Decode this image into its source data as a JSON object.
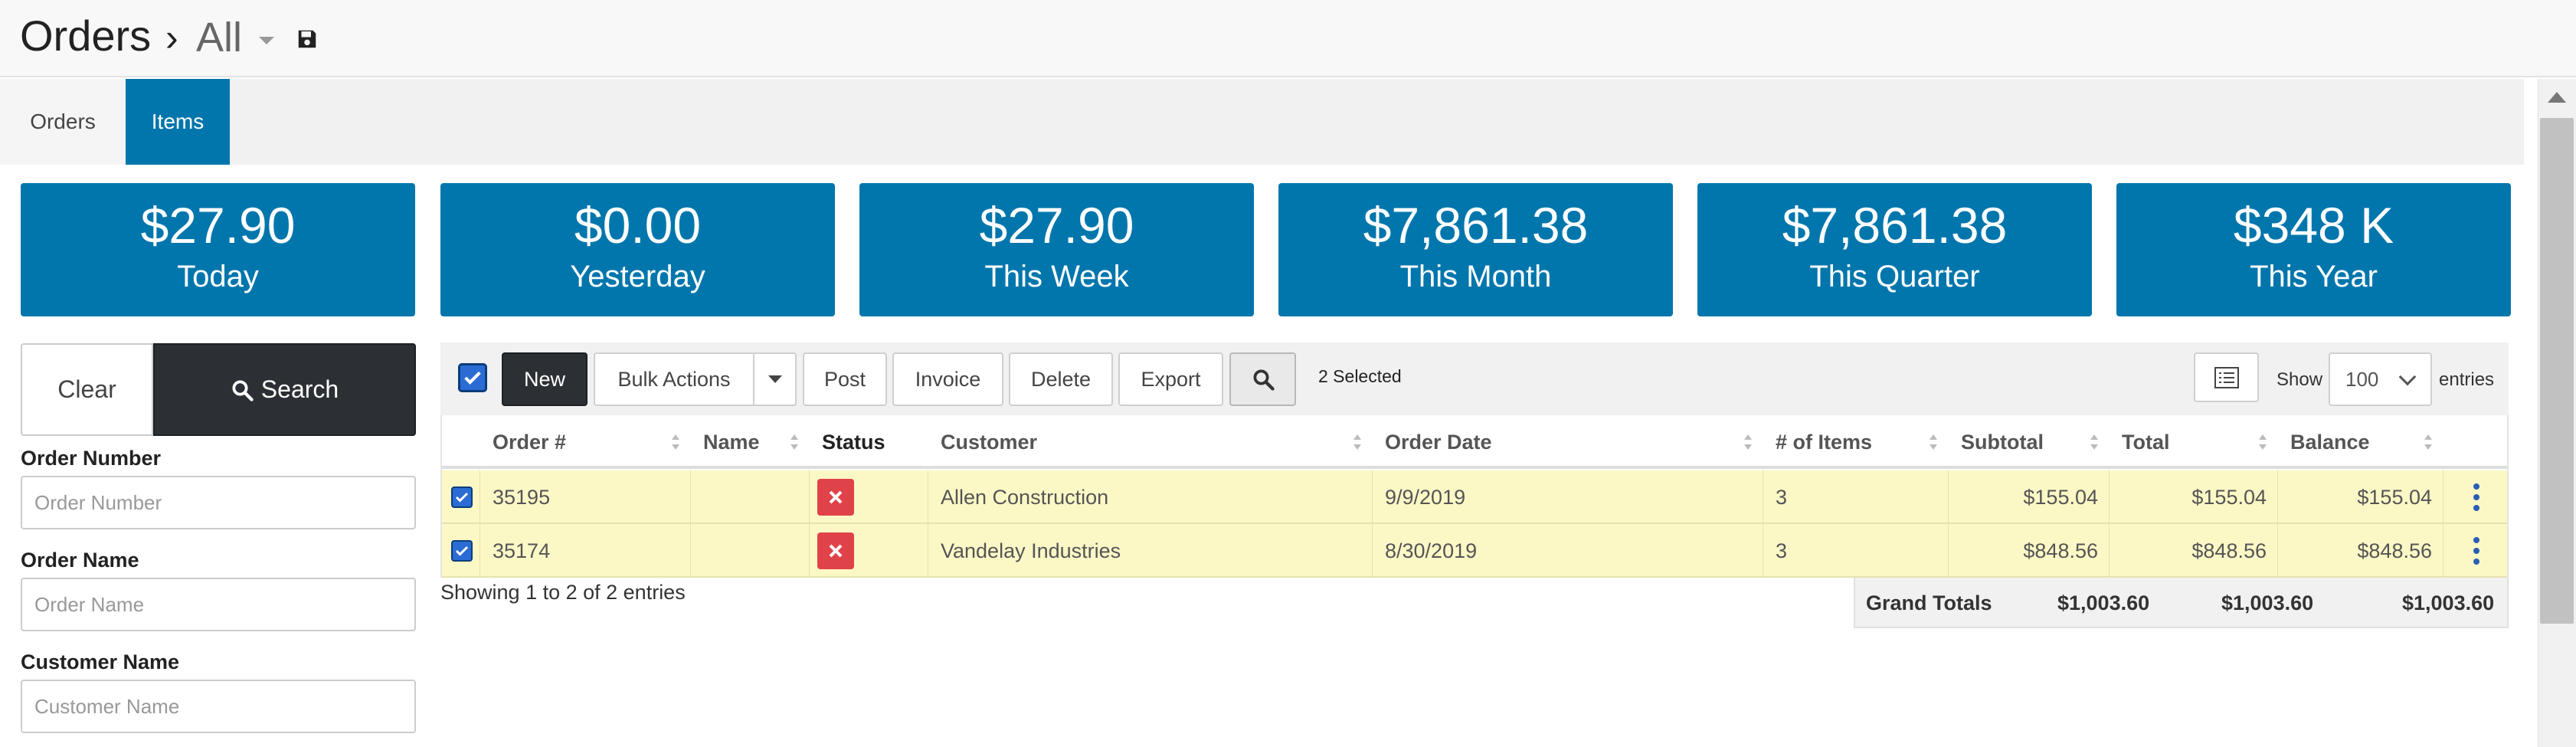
{
  "header": {
    "title": "Orders",
    "separator": "›",
    "view": "All",
    "save_icon": "save-icon",
    "caret_icon": "caret-down-icon"
  },
  "tabs": [
    {
      "label": "Orders",
      "active": false
    },
    {
      "label": "Items",
      "active": true
    }
  ],
  "stats": [
    {
      "amount": "$27.90",
      "label": "Today"
    },
    {
      "amount": "$0.00",
      "label": "Yesterday"
    },
    {
      "amount": "$27.90",
      "label": "This Week"
    },
    {
      "amount": "$7,861.38",
      "label": "This Month"
    },
    {
      "amount": "$7,861.38",
      "label": "This Quarter"
    },
    {
      "amount": "$348 K",
      "label": "This Year"
    }
  ],
  "filters": {
    "clear_label": "Clear",
    "search_label": "Search",
    "fields": [
      {
        "label": "Order Number",
        "placeholder": "Order Number"
      },
      {
        "label": "Order Name",
        "placeholder": "Order Name"
      },
      {
        "label": "Customer Name",
        "placeholder": "Customer Name"
      }
    ]
  },
  "toolbar": {
    "new_label": "New",
    "bulk_label": "Bulk Actions",
    "post_label": "Post",
    "invoice_label": "Invoice",
    "delete_label": "Delete",
    "export_label": "Export",
    "selected_text": "2 Selected",
    "show_label": "Show",
    "page_size": "100",
    "entries_label": "entries"
  },
  "table": {
    "columns": [
      "Order #",
      "Name",
      "Status",
      "Customer",
      "Order Date",
      "# of Items",
      "Subtotal",
      "Total",
      "Balance"
    ],
    "rows": [
      {
        "order": "35195",
        "name": "",
        "customer": "Allen Construction",
        "date": "9/9/2019",
        "items": "3",
        "subtotal": "$155.04",
        "total": "$155.04",
        "balance": "$155.04"
      },
      {
        "order": "35174",
        "name": "",
        "customer": "Vandelay Industries",
        "date": "8/30/2019",
        "items": "3",
        "subtotal": "$848.56",
        "total": "$848.56",
        "balance": "$848.56"
      }
    ],
    "showing": "Showing 1 to 2 of 2 entries",
    "grand_totals_label": "Grand Totals",
    "grand_subtotal": "$1,003.60",
    "grand_total": "$1,003.60",
    "grand_balance": "$1,003.60"
  },
  "colors": {
    "brand": "#0076ac",
    "selected_row": "#fcf8c6",
    "status_error": "#e0424a",
    "dark_button": "#2c3034"
  }
}
